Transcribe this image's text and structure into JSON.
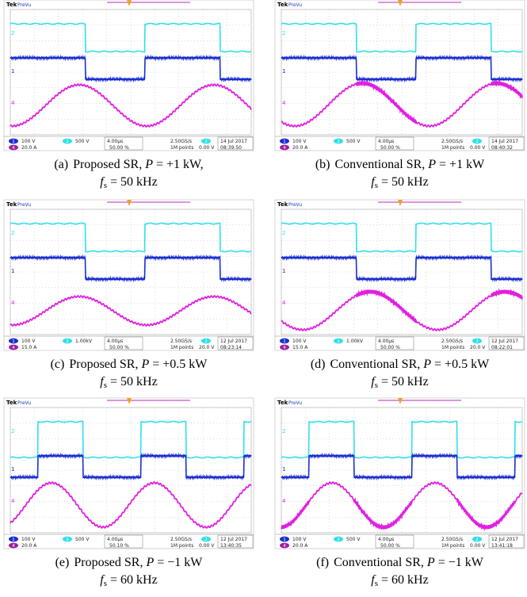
{
  "channel_ids": {
    "ch1": "1",
    "ch2": "2",
    "ch4": "4"
  },
  "panels": [
    {
      "scope": {
        "brand": "Tek",
        "mode": "PreVu",
        "ch1_scale": "100 V",
        "ch2_scale": "500 V",
        "ch4_scale": "20.0 A",
        "timebase": "4.00µs",
        "trigger_position": "50.00 %",
        "sample_rate": "2.50GS/s",
        "record_length": "1M points",
        "trigger_level": "0.00 V",
        "date": "14 Jul 2017",
        "time": "08:39:50"
      },
      "caption": {
        "label": "(a)",
        "method": "Proposed SR,",
        "power_symbol": "P",
        "power_value": "= +1 kW,",
        "freq_symbol": "f",
        "freq_subscript": "s",
        "freq_value": "= 50 kHz"
      }
    },
    {
      "scope": {
        "brand": "Tek",
        "mode": "PreVu",
        "ch1_scale": "100 V",
        "ch2_scale": "500 V",
        "ch4_scale": "20.0 A",
        "timebase": "4.00µs",
        "trigger_position": "50.00 %",
        "sample_rate": "2.50GS/s",
        "record_length": "1M points",
        "trigger_level": "0.00 V",
        "date": "14 Jul 2017",
        "time": "08:40:32"
      },
      "caption": {
        "label": "(b)",
        "method": "Conventional SR,",
        "power_symbol": "P",
        "power_value": "= +1 kW",
        "freq_symbol": "f",
        "freq_subscript": "s",
        "freq_value": "= 50 kHz"
      }
    },
    {
      "scope": {
        "brand": "Tek",
        "mode": "PreVu",
        "ch1_scale": "100 V",
        "ch2_scale": "1.00kV",
        "ch4_scale": "15.0 A",
        "timebase": "4.00µs",
        "trigger_position": "50.00 %",
        "sample_rate": "2.50GS/s",
        "record_length": "1M points",
        "trigger_level": "20.0 V",
        "date": "12 Jul 2017",
        "time": "08:23:14"
      },
      "caption": {
        "label": "(c)",
        "method": "Proposed SR,",
        "power_symbol": "P",
        "power_value": "= +0.5 kW",
        "freq_symbol": "f",
        "freq_subscript": "s",
        "freq_value": "= 50 kHz"
      }
    },
    {
      "scope": {
        "brand": "Tek",
        "mode": "PreVu",
        "ch1_scale": "100 V",
        "ch2_scale": "1.00kV",
        "ch4_scale": "15.0 A",
        "timebase": "4.00µs",
        "trigger_position": "50.00 %",
        "sample_rate": "2.50GS/s",
        "record_length": "1M points",
        "trigger_level": "20.0 V",
        "date": "12 Jul 2017",
        "time": "08:22:01"
      },
      "caption": {
        "label": "(d)",
        "method": "Conventional SR,",
        "power_symbol": "P",
        "power_value": "= +0.5 kW",
        "freq_symbol": "f",
        "freq_subscript": "s",
        "freq_value": "= 50 kHz"
      }
    },
    {
      "scope": {
        "brand": "Tek",
        "mode": "PreVu",
        "ch1_scale": "100 V",
        "ch2_scale": "500 V",
        "ch4_scale": "20.0 A",
        "timebase": "4.00µs",
        "trigger_position": "50.10 %",
        "sample_rate": "2.50GS/s",
        "record_length": "1M points",
        "trigger_level": "0.00 V",
        "date": "12 Jul 2017",
        "time": "13:40:35"
      },
      "caption": {
        "label": "(e)",
        "method": "Proposed SR,",
        "power_symbol": "P",
        "power_value": "= −1 kW",
        "freq_symbol": "f",
        "freq_subscript": "s",
        "freq_value": "= 60 kHz"
      }
    },
    {
      "scope": {
        "brand": "Tek",
        "mode": "PreVu",
        "ch1_scale": "100 V",
        "ch2_scale": "500 V",
        "ch4_scale": "20.0 A",
        "timebase": "4.00µs",
        "trigger_position": "50.00 %",
        "sample_rate": "2.50GS/s",
        "record_length": "1M points",
        "trigger_level": "0.00 V",
        "date": "12 Jul 2017",
        "time": "13:41:18"
      },
      "caption": {
        "label": "(f)",
        "method": "Conventional SR,",
        "power_symbol": "P",
        "power_value": "= −1 kW",
        "freq_symbol": "f",
        "freq_subscript": "s",
        "freq_value": "= 60 kHz"
      }
    }
  ]
}
